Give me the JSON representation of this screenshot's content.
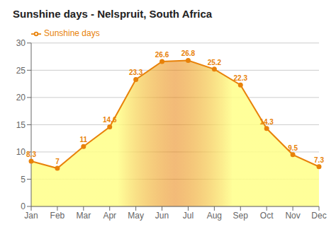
{
  "chart_data": {
    "type": "area",
    "title": "Sunshine days - Nelspruit, South Africa",
    "categories": [
      "Jan",
      "Feb",
      "Mar",
      "Apr",
      "May",
      "Jun",
      "Jul",
      "Aug",
      "Sep",
      "Oct",
      "Nov",
      "Dec"
    ],
    "series": [
      {
        "name": "Sunshine days",
        "color": "#E8820A",
        "values": [
          8.3,
          7.0,
          11.0,
          14.6,
          23.3,
          26.6,
          26.8,
          25.2,
          22.3,
          14.3,
          9.5,
          7.3
        ]
      }
    ],
    "ylim": [
      0,
      30
    ],
    "yticks": [
      0,
      5,
      10,
      15,
      20,
      25,
      30
    ],
    "grid": true,
    "legend": "upper left",
    "data_labels": true
  }
}
